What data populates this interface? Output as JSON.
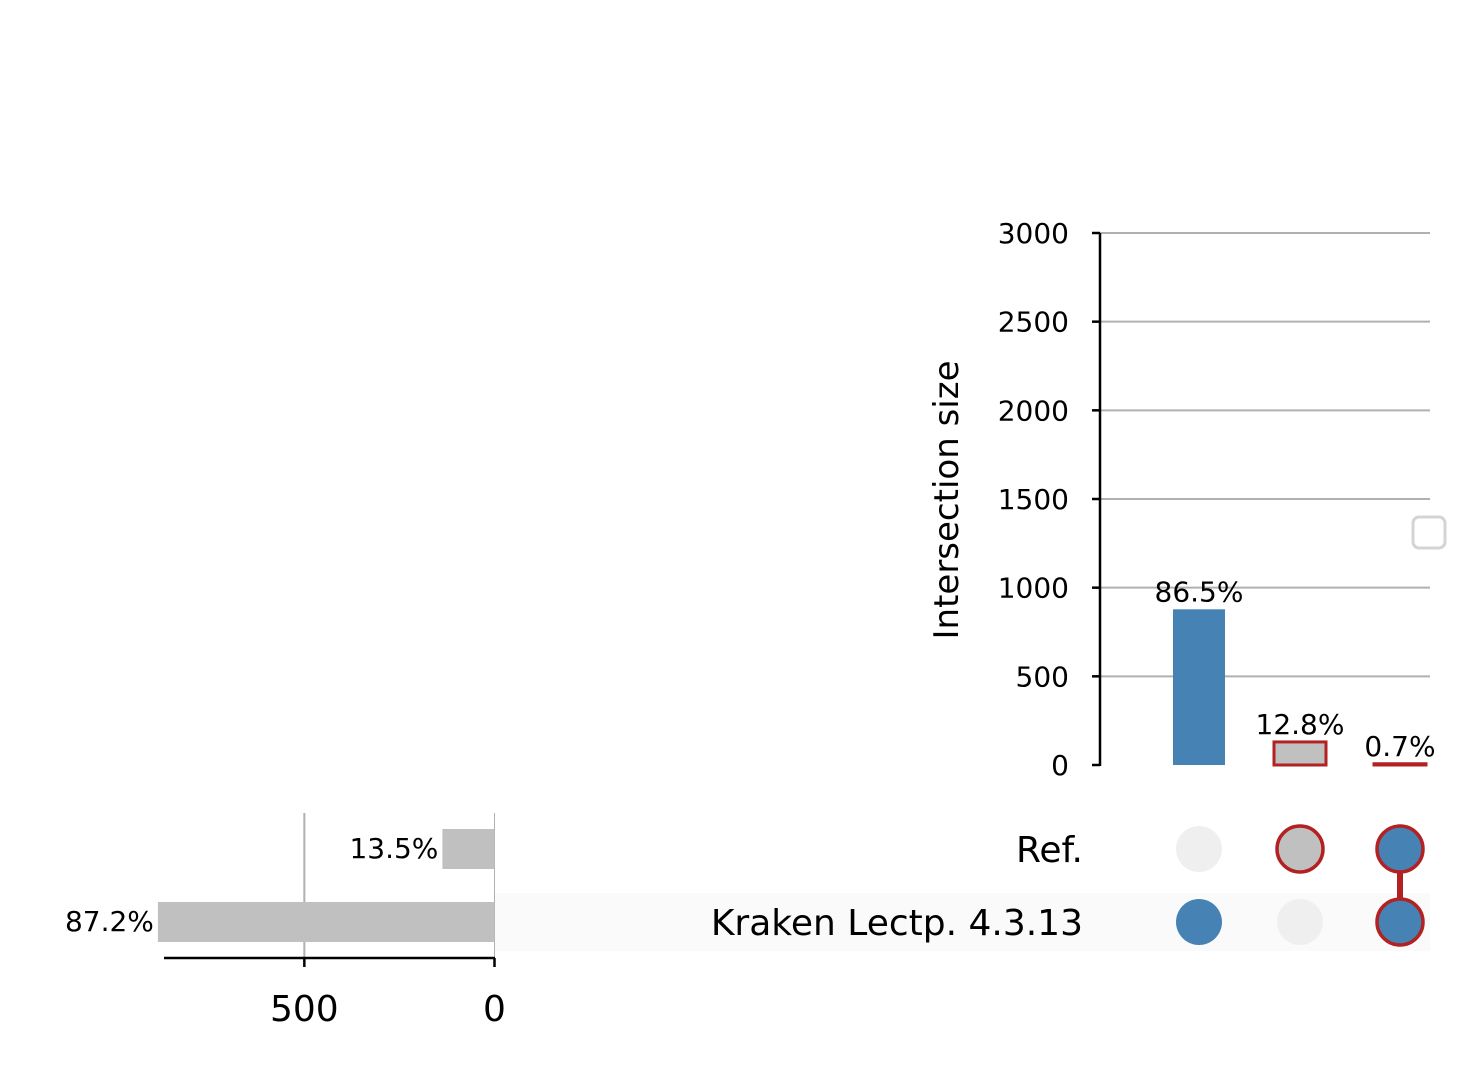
{
  "chart_data": {
    "type": "bar",
    "subtype": "upset",
    "title": "",
    "colors": {
      "highlight": "#4682b4",
      "neutral": "#c0c0c0",
      "edge": "#b22222",
      "inactive_dot": "#efefef",
      "grid": "#b0b0b0",
      "stripe": "#fafafa"
    },
    "intersections": {
      "ylabel": "Intersection size",
      "ylim": [
        0,
        3000
      ],
      "yticks": [
        0,
        500,
        1000,
        1500,
        2000,
        2500,
        3000
      ],
      "grid": true,
      "bars": [
        {
          "value": 878,
          "label": "86.5%",
          "sets": [
            "Kraken Lectp. 4.3.13"
          ],
          "color": "#4682b4",
          "edge": ""
        },
        {
          "value": 130,
          "label": "12.8%",
          "sets": [
            "Ref."
          ],
          "color": "#c0c0c0",
          "edge": "#b22222"
        },
        {
          "value": 7,
          "label": "0.7%",
          "sets": [
            "Ref.",
            "Kraken Lectp. 4.3.13"
          ],
          "color": "#4682b4",
          "edge": "#b22222"
        }
      ]
    },
    "set_sizes": {
      "xticks": [
        500,
        0
      ],
      "xlim": [
        0,
        869
      ],
      "sets": [
        {
          "name": "Ref.",
          "value": 137,
          "label": "13.5%"
        },
        {
          "name": "Kraken Lectp. 4.3.13",
          "value": 885,
          "label": "87.2%"
        }
      ]
    }
  }
}
